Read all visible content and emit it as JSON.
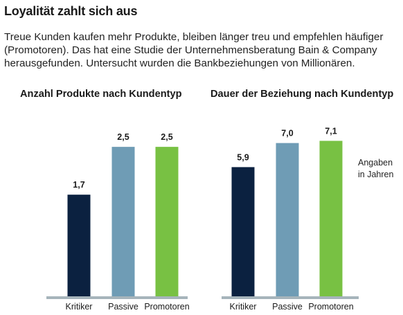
{
  "title": "Loyalität zahlt sich aus",
  "intro_lines": [
    "Treue Kunden kaufen mehr Produkte, bleiben länger treu und empfehlen häufiger",
    "(Promotoren). Das hat eine Studie der Unternehmensberatung Bain & Company",
    "herausgefunden. Untersucht wurden die Bankbeziehungen von Millionären."
  ],
  "unit_note": [
    "Angaben",
    "in Jahren"
  ],
  "colors": {
    "Kritiker": "#0b2140",
    "Passive": "#6f9cb5",
    "Promotoren": "#78c143",
    "baseline": "#a6b4bb"
  },
  "chart_data": [
    {
      "type": "bar",
      "title": "Anzahl Produkte nach Kundentyp",
      "categories": [
        "Kritiker",
        "Passive",
        "Promotoren"
      ],
      "values": [
        1.7,
        2.5,
        2.5
      ],
      "value_labels": [
        "1,7",
        "2,5",
        "2,5"
      ],
      "xlabel": "",
      "ylabel": "",
      "ylim": [
        0,
        3.15
      ]
    },
    {
      "type": "bar",
      "title": "Dauer der Beziehung nach Kundentyp",
      "categories": [
        "Kritiker",
        "Passive",
        "Promotoren"
      ],
      "values": [
        5.9,
        7.0,
        7.1
      ],
      "value_labels": [
        "5,9",
        "7,0",
        "7,1"
      ],
      "xlabel": "",
      "ylabel": "",
      "ylim": [
        0,
        8.6
      ]
    }
  ]
}
